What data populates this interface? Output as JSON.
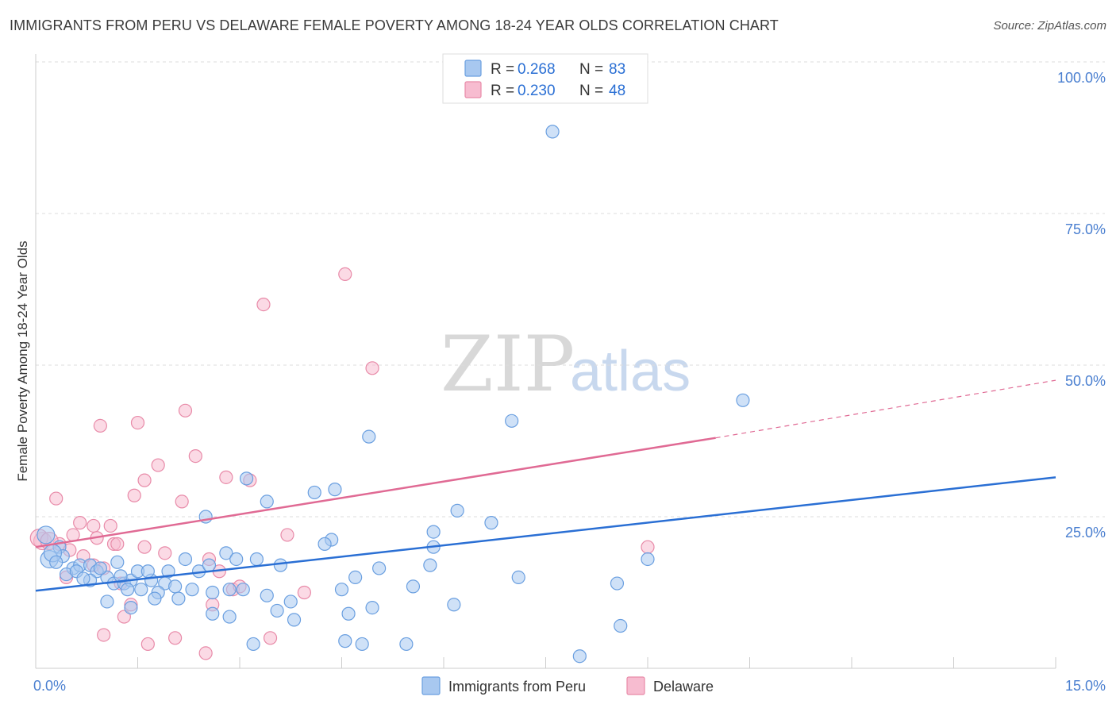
{
  "title": "IMMIGRANTS FROM PERU VS DELAWARE FEMALE POVERTY AMONG 18-24 YEAR OLDS CORRELATION CHART",
  "source": "Source: ZipAtlas.com",
  "watermark": {
    "zip": "ZIP",
    "atlas": "atlas"
  },
  "colors": {
    "blue_fill": "#a8c8f0",
    "blue_stroke": "#6a9fe0",
    "blue_line": "#2a6fd4",
    "pink_fill": "#f7bcd0",
    "pink_stroke": "#e88aa8",
    "pink_line": "#e06a94",
    "grid": "#dddddd",
    "tick_text": "#4a7fd0"
  },
  "legend": {
    "rows": [
      {
        "r_label": "R =",
        "r_value": "0.268",
        "n_label": "N =",
        "n_value": "83"
      },
      {
        "r_label": "R =",
        "r_value": "0.230",
        "n_label": "N =",
        "n_value": "48"
      }
    ]
  },
  "chart_data": {
    "type": "scatter",
    "ylabel": "Female Poverty Among 18-24 Year Olds",
    "xlim": [
      0,
      15
    ],
    "ylim": [
      0,
      100
    ],
    "x_tick_labels": [
      {
        "value": 0,
        "label": "0.0%"
      },
      {
        "value": 15,
        "label": "15.0%"
      }
    ],
    "y_tick_labels": [
      {
        "value": 25,
        "label": "25.0%"
      },
      {
        "value": 50,
        "label": "50.0%"
      },
      {
        "value": 75,
        "label": "75.0%"
      },
      {
        "value": 100,
        "label": "100.0%"
      }
    ],
    "legend_placement": "top-center",
    "grid": true,
    "series": [
      {
        "name": "Immigrants from Peru",
        "color": "#a8c8f0",
        "trendline": {
          "x": [
            0,
            15
          ],
          "y": [
            12.8,
            31.5
          ]
        },
        "points": [
          [
            7.6,
            88.5
          ],
          [
            10.4,
            44.2
          ],
          [
            7.0,
            40.8
          ],
          [
            4.9,
            38.2
          ],
          [
            3.1,
            31.3
          ],
          [
            4.4,
            29.5
          ],
          [
            4.1,
            29.0
          ],
          [
            3.4,
            27.5
          ],
          [
            6.2,
            26.0
          ],
          [
            2.5,
            25.0
          ],
          [
            6.7,
            24.0
          ],
          [
            5.85,
            22.5
          ],
          [
            4.35,
            21.2
          ],
          [
            4.25,
            20.5
          ],
          [
            5.85,
            20.0
          ],
          [
            0.15,
            22.0
          ],
          [
            0.35,
            20.0
          ],
          [
            0.4,
            18.5
          ],
          [
            0.2,
            18.0
          ],
          [
            0.55,
            16.5
          ],
          [
            0.65,
            17.0
          ],
          [
            0.8,
            17.0
          ],
          [
            0.9,
            16.0
          ],
          [
            0.45,
            15.5
          ],
          [
            1.05,
            15.0
          ],
          [
            0.8,
            14.5
          ],
          [
            1.15,
            14.0
          ],
          [
            1.3,
            14.0
          ],
          [
            1.4,
            14.5
          ],
          [
            1.7,
            14.5
          ],
          [
            1.9,
            14.0
          ],
          [
            1.35,
            13.0
          ],
          [
            1.55,
            13.0
          ],
          [
            1.8,
            12.5
          ],
          [
            2.05,
            13.5
          ],
          [
            2.3,
            13.0
          ],
          [
            2.6,
            12.5
          ],
          [
            1.5,
            16.0
          ],
          [
            1.65,
            16.0
          ],
          [
            2.2,
            18.0
          ],
          [
            2.4,
            16.0
          ],
          [
            2.55,
            17.0
          ],
          [
            2.8,
            19.0
          ],
          [
            2.95,
            18.0
          ],
          [
            3.25,
            18.0
          ],
          [
            3.6,
            17.0
          ],
          [
            2.85,
            13.0
          ],
          [
            3.05,
            13.0
          ],
          [
            3.4,
            12.0
          ],
          [
            3.75,
            11.0
          ],
          [
            4.5,
            13.0
          ],
          [
            4.7,
            15.0
          ],
          [
            5.05,
            16.5
          ],
          [
            5.55,
            13.5
          ],
          [
            5.8,
            17.0
          ],
          [
            6.15,
            10.5
          ],
          [
            7.1,
            15.0
          ],
          [
            8.55,
            14.0
          ],
          [
            9.0,
            18.0
          ],
          [
            3.55,
            9.5
          ],
          [
            3.8,
            8.0
          ],
          [
            4.6,
            9.0
          ],
          [
            4.95,
            10.0
          ],
          [
            2.6,
            9.0
          ],
          [
            2.85,
            8.5
          ],
          [
            4.55,
            4.5
          ],
          [
            4.8,
            4.0
          ],
          [
            5.45,
            4.0
          ],
          [
            3.2,
            4.0
          ],
          [
            8.6,
            7.0
          ],
          [
            8.0,
            2.0
          ],
          [
            1.4,
            10.0
          ],
          [
            1.05,
            11.0
          ],
          [
            1.2,
            17.5
          ],
          [
            0.25,
            19.0
          ],
          [
            0.3,
            17.5
          ],
          [
            0.6,
            16.0
          ],
          [
            0.7,
            14.8
          ],
          [
            0.95,
            16.5
          ],
          [
            1.25,
            15.2
          ],
          [
            1.95,
            16.0
          ],
          [
            2.1,
            11.5
          ],
          [
            1.75,
            11.5
          ]
        ]
      },
      {
        "name": "Delaware",
        "color": "#f7bcd0",
        "trendline": {
          "x": [
            0,
            10.0
          ],
          "y": [
            20.0,
            38.0
          ]
        },
        "trendline_dashed": {
          "x": [
            10.0,
            15
          ],
          "y": [
            38.0,
            47.5
          ]
        },
        "points": [
          [
            4.55,
            65.0
          ],
          [
            3.35,
            60.0
          ],
          [
            4.95,
            49.5
          ],
          [
            2.2,
            42.5
          ],
          [
            1.5,
            40.5
          ],
          [
            0.95,
            40.0
          ],
          [
            2.35,
            35.0
          ],
          [
            1.8,
            33.5
          ],
          [
            2.8,
            31.5
          ],
          [
            3.15,
            31.0
          ],
          [
            1.6,
            31.0
          ],
          [
            1.45,
            28.5
          ],
          [
            0.3,
            28.0
          ],
          [
            2.15,
            27.5
          ],
          [
            0.65,
            24.0
          ],
          [
            0.85,
            23.5
          ],
          [
            1.1,
            23.5
          ],
          [
            0.55,
            22.0
          ],
          [
            0.9,
            21.5
          ],
          [
            0.1,
            21.0
          ],
          [
            0.35,
            20.5
          ],
          [
            1.15,
            20.5
          ],
          [
            1.6,
            20.0
          ],
          [
            0.5,
            19.5
          ],
          [
            0.7,
            18.5
          ],
          [
            1.9,
            19.0
          ],
          [
            3.7,
            22.0
          ],
          [
            9.0,
            20.0
          ],
          [
            2.55,
            18.0
          ],
          [
            2.7,
            16.0
          ],
          [
            0.85,
            17.0
          ],
          [
            1.0,
            16.5
          ],
          [
            0.45,
            15.0
          ],
          [
            1.25,
            14.0
          ],
          [
            2.9,
            13.0
          ],
          [
            3.0,
            13.5
          ],
          [
            3.95,
            12.5
          ],
          [
            1.4,
            10.5
          ],
          [
            1.3,
            8.5
          ],
          [
            2.6,
            10.5
          ],
          [
            1.0,
            5.5
          ],
          [
            2.05,
            5.0
          ],
          [
            3.45,
            5.0
          ],
          [
            1.65,
            4.0
          ],
          [
            2.5,
            2.5
          ],
          [
            0.05,
            21.5
          ],
          [
            0.2,
            21.0
          ],
          [
            1.2,
            20.5
          ]
        ]
      }
    ]
  },
  "bottom_legend": {
    "items": [
      {
        "label": "Immigrants from Peru"
      },
      {
        "label": "Delaware"
      }
    ]
  }
}
